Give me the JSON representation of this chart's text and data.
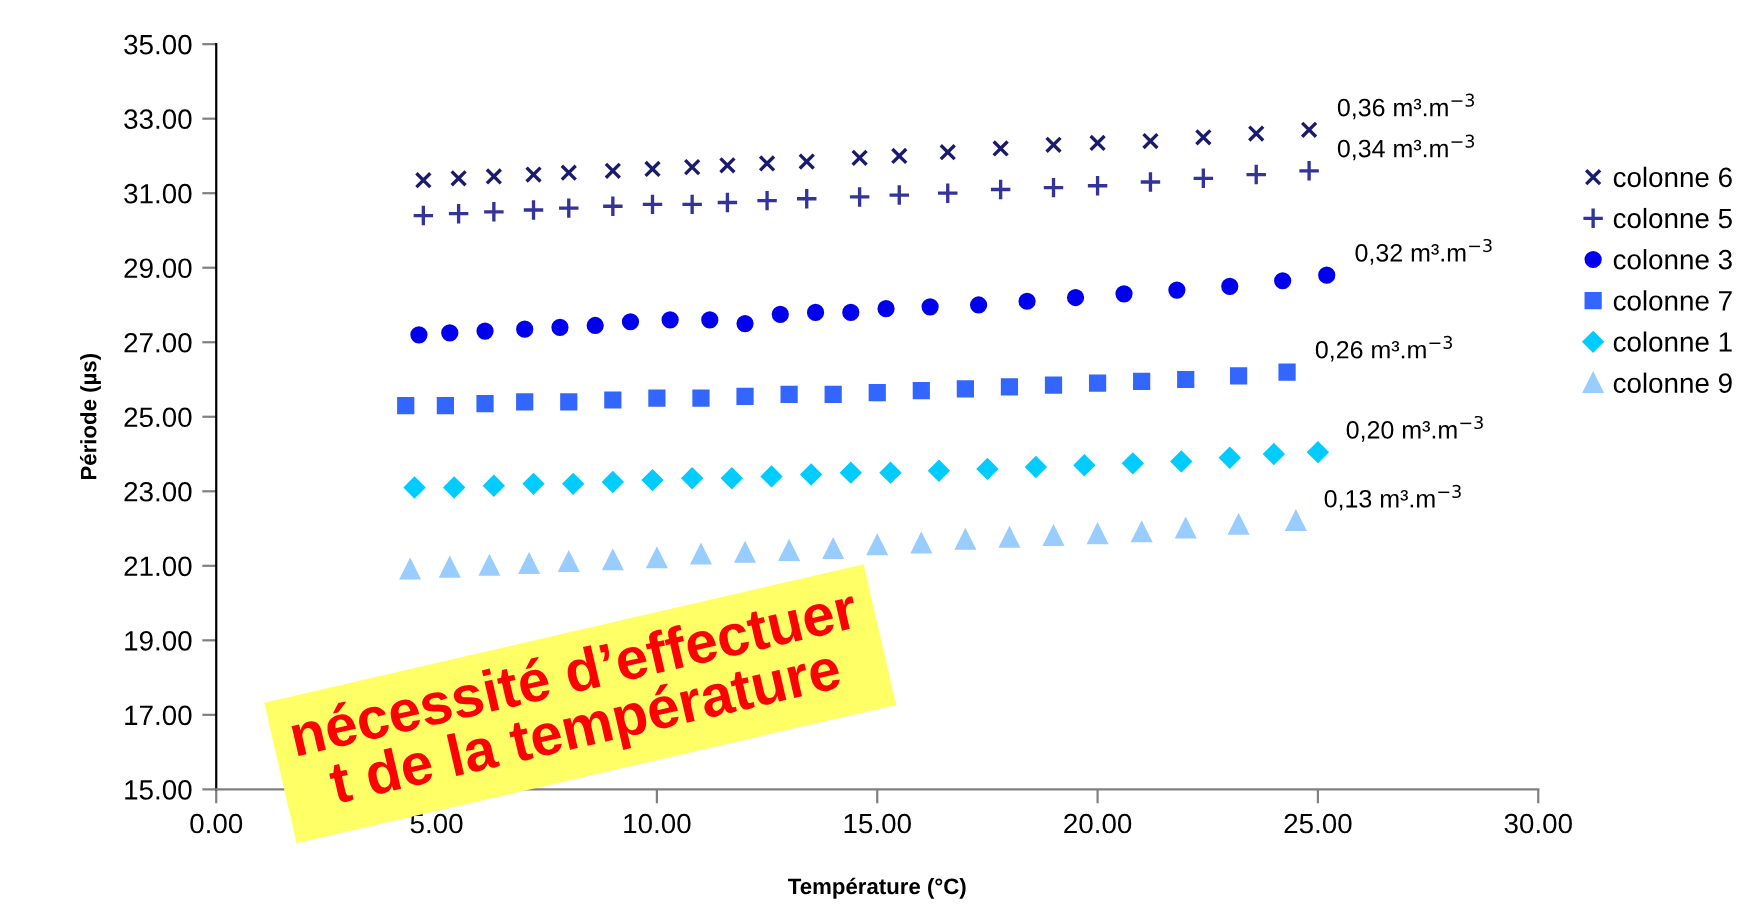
{
  "chart_data": {
    "type": "scatter",
    "xlabel": "Température (°C)",
    "ylabel": "Période (µs)",
    "xlim": [
      0,
      30
    ],
    "xticks": [
      {
        "value": 0,
        "label": "0.00"
      },
      {
        "value": 5,
        "label": "5.00"
      },
      {
        "value": 10,
        "label": "10.00"
      },
      {
        "value": 15,
        "label": "15.00"
      },
      {
        "value": 20,
        "label": "20.00"
      },
      {
        "value": 25,
        "label": "25.00"
      },
      {
        "value": 30,
        "label": "30.00"
      }
    ],
    "ylim": [
      15,
      35
    ],
    "yticks": [
      {
        "value": 15,
        "label": "15.00"
      },
      {
        "value": 17,
        "label": "17.00"
      },
      {
        "value": 19,
        "label": "19.00"
      },
      {
        "value": 21,
        "label": "21.00"
      },
      {
        "value": 23,
        "label": "23.00"
      },
      {
        "value": 25,
        "label": "25.00"
      },
      {
        "value": 27,
        "label": "27.00"
      },
      {
        "value": 29,
        "label": "29.00"
      },
      {
        "value": 31,
        "label": "31.00"
      },
      {
        "value": 33,
        "label": "33.00"
      },
      {
        "value": 35,
        "label": "35.00"
      }
    ],
    "grid": false,
    "legend": "right",
    "series": [
      {
        "name": "colonne 6",
        "color": "#1a1a6e",
        "marker": "cross",
        "x": [
          4.7,
          5.5,
          6.3,
          7.2,
          8.0,
          9.0,
          9.9,
          10.8,
          11.6,
          12.5,
          13.4,
          14.6,
          15.5,
          16.6,
          17.8,
          19.0,
          20.0,
          21.2,
          22.4,
          23.6,
          24.8
        ],
        "values": [
          31.35,
          31.4,
          31.45,
          31.5,
          31.55,
          31.6,
          31.65,
          31.7,
          31.75,
          31.8,
          31.85,
          31.95,
          32.0,
          32.1,
          32.2,
          32.3,
          32.35,
          32.4,
          32.5,
          32.6,
          32.7
        ]
      },
      {
        "name": "colonne 5",
        "color": "#333399",
        "marker": "plus",
        "x": [
          4.7,
          5.5,
          6.3,
          7.2,
          8.0,
          9.0,
          9.9,
          10.8,
          11.6,
          12.5,
          13.4,
          14.6,
          15.5,
          16.6,
          17.8,
          19.0,
          20.0,
          21.2,
          22.4,
          23.6,
          24.8
        ],
        "values": [
          30.4,
          30.45,
          30.5,
          30.55,
          30.6,
          30.65,
          30.7,
          30.7,
          30.75,
          30.8,
          30.85,
          30.9,
          30.95,
          31.0,
          31.1,
          31.15,
          31.2,
          31.3,
          31.4,
          31.5,
          31.6
        ]
      },
      {
        "name": "colonne 3",
        "color": "#0000ee",
        "marker": "circle",
        "x": [
          4.6,
          5.3,
          6.1,
          7.0,
          7.8,
          8.6,
          9.4,
          10.3,
          11.2,
          12.0,
          12.8,
          13.6,
          14.4,
          15.2,
          16.2,
          17.3,
          18.4,
          19.5,
          20.6,
          21.8,
          23.0,
          24.2,
          25.2
        ],
        "values": [
          27.2,
          27.25,
          27.3,
          27.35,
          27.4,
          27.45,
          27.55,
          27.6,
          27.6,
          27.5,
          27.75,
          27.8,
          27.8,
          27.9,
          27.95,
          28.0,
          28.1,
          28.2,
          28.3,
          28.4,
          28.5,
          28.65,
          28.8
        ]
      },
      {
        "name": "colonne 7",
        "color": "#3366ff",
        "marker": "square",
        "x": [
          4.3,
          5.2,
          6.1,
          7.0,
          8.0,
          9.0,
          10.0,
          11.0,
          12.0,
          13.0,
          14.0,
          15.0,
          16.0,
          17.0,
          18.0,
          19.0,
          20.0,
          21.0,
          22.0,
          23.2,
          24.3
        ],
        "values": [
          25.3,
          25.3,
          25.35,
          25.4,
          25.4,
          25.45,
          25.5,
          25.5,
          25.55,
          25.6,
          25.6,
          25.65,
          25.7,
          25.75,
          25.8,
          25.85,
          25.9,
          25.95,
          26.0,
          26.1,
          26.2
        ]
      },
      {
        "name": "colonne 1",
        "color": "#00ccff",
        "marker": "diamond",
        "x": [
          4.5,
          5.4,
          6.3,
          7.2,
          8.1,
          9.0,
          9.9,
          10.8,
          11.7,
          12.6,
          13.5,
          14.4,
          15.3,
          16.4,
          17.5,
          18.6,
          19.7,
          20.8,
          21.9,
          23.0,
          24.0,
          25.0
        ],
        "values": [
          23.1,
          23.1,
          23.15,
          23.2,
          23.2,
          23.25,
          23.3,
          23.35,
          23.35,
          23.4,
          23.45,
          23.5,
          23.5,
          23.55,
          23.6,
          23.65,
          23.7,
          23.75,
          23.8,
          23.9,
          24.0,
          24.05
        ]
      },
      {
        "name": "colonne 9",
        "color": "#99ccff",
        "marker": "triangle",
        "x": [
          4.4,
          5.3,
          6.2,
          7.1,
          8.0,
          9.0,
          10.0,
          11.0,
          12.0,
          13.0,
          14.0,
          15.0,
          16.0,
          17.0,
          18.0,
          19.0,
          20.0,
          21.0,
          22.0,
          23.2,
          24.5
        ],
        "values": [
          20.9,
          20.95,
          21.0,
          21.05,
          21.1,
          21.15,
          21.2,
          21.3,
          21.35,
          21.4,
          21.45,
          21.55,
          21.6,
          21.7,
          21.75,
          21.8,
          21.85,
          21.9,
          22.0,
          22.1,
          22.2
        ]
      }
    ],
    "annotations": [
      {
        "text": "0,36 m³.m$^{−3}$",
        "x": 24.8,
        "y": 32.7
      },
      {
        "text": "0,34 m³.m$^{−3}$",
        "x": 24.8,
        "y": 31.6
      },
      {
        "text": "0,32 m³.m$^{−3}$",
        "x": 25.2,
        "y": 28.8
      },
      {
        "text": "0,26 m³.m$^{−3}$",
        "x": 24.3,
        "y": 26.2
      },
      {
        "text": "0,20 m³.m$^{−3}$",
        "x": 25.0,
        "y": 24.05
      },
      {
        "text": "0,13 m³.m$^{−3}$",
        "x": 24.5,
        "y": 22.2
      },
      "nécessité d’effectuer",
      "t de la température"
    ]
  }
}
